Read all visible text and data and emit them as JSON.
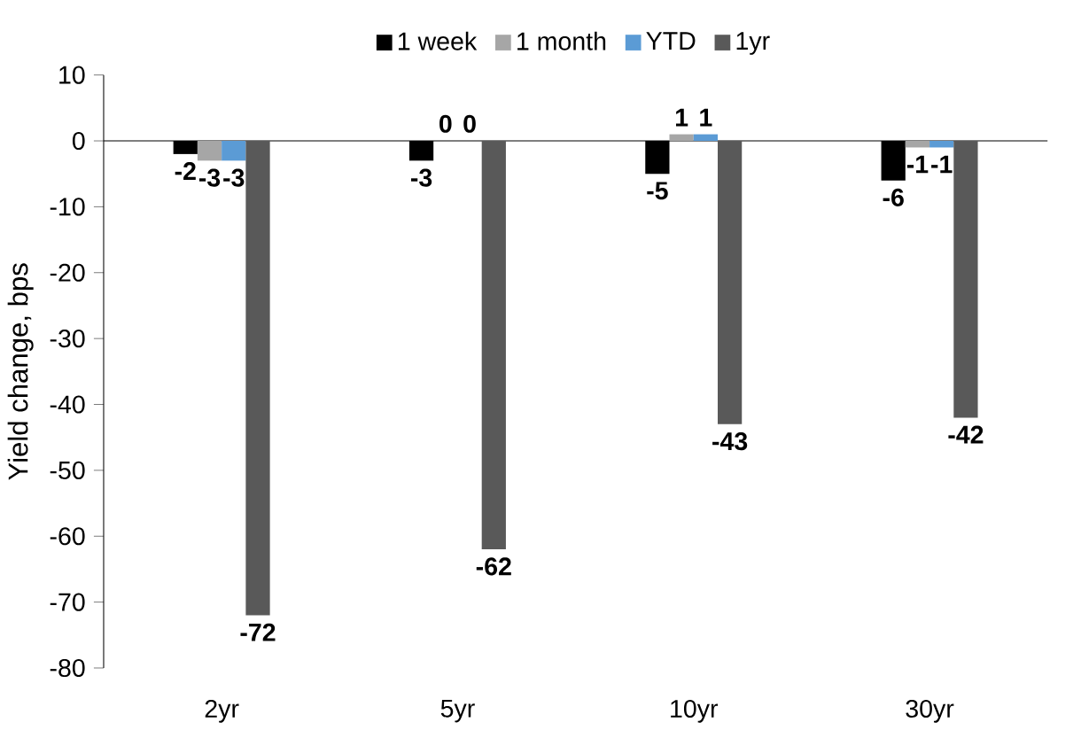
{
  "chart_data": {
    "type": "bar",
    "ylabel": "Yield change, bps",
    "categories": [
      "2yr",
      "5yr",
      "10yr",
      "30yr"
    ],
    "series": [
      {
        "name": "1 week",
        "color": "#000000",
        "values": [
          -2,
          -3,
          -5,
          -6
        ]
      },
      {
        "name": "1 month",
        "color": "#a6a6a6",
        "values": [
          -3,
          0,
          1,
          -1
        ]
      },
      {
        "name": "YTD",
        "color": "#5b9bd5",
        "values": [
          -3,
          0,
          1,
          -1
        ]
      },
      {
        "name": "1yr",
        "color": "#595959",
        "values": [
          -72,
          -62,
          -43,
          -42
        ]
      }
    ],
    "ylim": [
      -80,
      10
    ],
    "yticks": [
      -80,
      -70,
      -60,
      -50,
      -40,
      -30,
      -20,
      -10,
      0,
      10
    ],
    "data_labels": true,
    "legend": "top"
  }
}
